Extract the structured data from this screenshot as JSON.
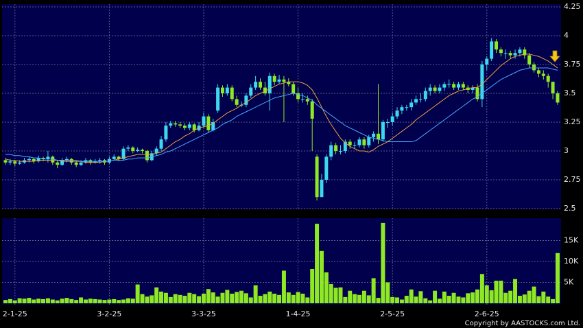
{
  "chart_data": {
    "type": "candlestick",
    "categories": [
      null,
      null,
      "2-1-25",
      null,
      null,
      null,
      null,
      null,
      null,
      null,
      null,
      null,
      null,
      null,
      null,
      null,
      null,
      null,
      null,
      null,
      null,
      null,
      "3-2-25",
      null,
      null,
      null,
      null,
      null,
      null,
      null,
      null,
      null,
      null,
      null,
      null,
      null,
      null,
      null,
      null,
      null,
      null,
      null,
      "3-3-25",
      null,
      null,
      null,
      null,
      null,
      null,
      null,
      null,
      null,
      null,
      null,
      null,
      null,
      null,
      null,
      null,
      null,
      null,
      null,
      "1-4-25",
      null,
      null,
      null,
      null,
      null,
      null,
      null,
      null,
      null,
      null,
      null,
      null,
      null,
      null,
      null,
      null,
      null,
      null,
      null,
      "2-5-25",
      null,
      null,
      null,
      null,
      null,
      null,
      null,
      null,
      null,
      null,
      null,
      null,
      null,
      null,
      null,
      null,
      null,
      null,
      null,
      "2-6-25",
      null,
      null,
      null,
      null,
      null,
      null,
      null,
      null,
      null,
      null,
      null,
      null,
      null,
      null,
      null
    ],
    "open": [
      2.92,
      2.9,
      2.91,
      2.89,
      2.9,
      2.92,
      2.93,
      2.91,
      2.94,
      2.93,
      2.95,
      2.9,
      2.88,
      2.92,
      2.93,
      2.9,
      2.88,
      2.9,
      2.92,
      2.9,
      2.91,
      2.92,
      2.9,
      2.93,
      2.95,
      2.93,
      3.02,
      3.03,
      3.0,
      3.01,
      3.0,
      2.92,
      2.98,
      3.02,
      3.1,
      3.22,
      3.24,
      3.23,
      3.22,
      3.2,
      3.23,
      3.18,
      3.22,
      3.3,
      3.18,
      3.35,
      3.55,
      3.5,
      3.55,
      3.45,
      3.4,
      3.4,
      3.48,
      3.55,
      3.6,
      3.55,
      3.5,
      3.65,
      3.6,
      3.62,
      3.6,
      3.58,
      3.5,
      3.45,
      3.45,
      3.43,
      2.95,
      2.6,
      2.75,
      2.95,
      3.05,
      3.0,
      3.0,
      3.08,
      3.05,
      3.05,
      3.1,
      3.05,
      3.12,
      3.15,
      3.1,
      3.25,
      3.25,
      3.3,
      3.35,
      3.38,
      3.38,
      3.42,
      3.45,
      3.45,
      3.52,
      3.55,
      3.52,
      3.55,
      3.58,
      3.58,
      3.55,
      3.58,
      3.55,
      3.53,
      3.55,
      3.45,
      3.75,
      3.8,
      3.95,
      3.88,
      3.85,
      3.85,
      3.83,
      3.85,
      3.88,
      3.83,
      3.75,
      3.7,
      3.67,
      3.65,
      3.6,
      3.5
    ],
    "high": [
      2.94,
      2.93,
      2.92,
      2.92,
      2.94,
      2.95,
      2.94,
      2.96,
      2.95,
      3.0,
      2.96,
      2.92,
      2.94,
      2.95,
      2.94,
      2.91,
      2.92,
      2.94,
      2.93,
      2.93,
      2.94,
      2.93,
      2.95,
      2.97,
      2.96,
      3.04,
      3.05,
      3.04,
      3.03,
      3.02,
      3.01,
      3.0,
      3.04,
      3.13,
      3.25,
      3.26,
      3.26,
      3.25,
      3.24,
      3.25,
      3.24,
      3.25,
      3.33,
      3.32,
      3.28,
      3.58,
      3.57,
      3.58,
      3.57,
      3.48,
      3.43,
      3.5,
      3.58,
      3.65,
      3.63,
      3.6,
      3.68,
      3.67,
      3.66,
      3.65,
      3.63,
      3.6,
      3.55,
      3.5,
      3.48,
      3.45,
      2.97,
      2.8,
      2.97,
      3.08,
      3.07,
      3.05,
      3.1,
      3.1,
      3.08,
      3.12,
      3.12,
      3.14,
      3.17,
      3.58,
      3.27,
      3.28,
      3.33,
      3.38,
      3.4,
      3.4,
      3.45,
      3.48,
      3.5,
      3.55,
      3.58,
      3.57,
      3.58,
      3.6,
      3.62,
      3.6,
      3.6,
      3.6,
      3.57,
      3.57,
      3.58,
      3.78,
      3.82,
      3.98,
      3.97,
      3.9,
      3.88,
      3.87,
      3.88,
      3.9,
      3.9,
      3.85,
      3.77,
      3.72,
      3.7,
      3.67,
      3.6,
      3.52
    ],
    "low": [
      2.88,
      2.88,
      2.87,
      2.88,
      2.89,
      2.9,
      2.89,
      2.9,
      2.91,
      2.9,
      2.88,
      2.85,
      2.87,
      2.9,
      2.88,
      2.86,
      2.87,
      2.89,
      2.88,
      2.89,
      2.89,
      2.88,
      2.89,
      2.92,
      2.91,
      2.92,
      3.0,
      2.98,
      2.99,
      2.98,
      2.9,
      2.91,
      2.96,
      3.0,
      3.08,
      3.2,
      3.21,
      3.2,
      3.18,
      3.18,
      3.16,
      3.17,
      3.2,
      3.16,
      3.17,
      3.33,
      3.47,
      3.48,
      3.43,
      3.38,
      3.38,
      3.38,
      3.46,
      3.53,
      3.53,
      3.48,
      3.35,
      3.57,
      3.58,
      3.25,
      3.56,
      3.48,
      3.42,
      3.42,
      3.4,
      3.0,
      2.57,
      2.6,
      2.72,
      2.92,
      2.97,
      2.97,
      2.98,
      3.02,
      3.02,
      3.03,
      3.02,
      3.03,
      3.08,
      3.06,
      3.08,
      3.2,
      3.22,
      3.28,
      3.32,
      3.35,
      3.35,
      3.4,
      3.42,
      3.43,
      3.48,
      3.5,
      3.5,
      3.52,
      3.55,
      3.53,
      3.53,
      3.53,
      3.5,
      3.5,
      3.43,
      3.38,
      3.7,
      3.78,
      3.85,
      3.82,
      3.8,
      3.8,
      3.8,
      3.82,
      3.8,
      3.72,
      3.68,
      3.64,
      3.62,
      3.55,
      3.45,
      3.4
    ],
    "close": [
      2.9,
      2.91,
      2.89,
      2.9,
      2.92,
      2.93,
      2.91,
      2.94,
      2.93,
      2.95,
      2.9,
      2.88,
      2.92,
      2.93,
      2.9,
      2.88,
      2.9,
      2.92,
      2.9,
      2.91,
      2.92,
      2.9,
      2.93,
      2.95,
      2.93,
      3.02,
      3.03,
      3.0,
      3.01,
      3.0,
      2.92,
      2.98,
      3.02,
      3.1,
      3.22,
      3.24,
      3.23,
      3.22,
      3.2,
      3.23,
      3.18,
      3.22,
      3.3,
      3.18,
      3.25,
      3.55,
      3.5,
      3.55,
      3.45,
      3.4,
      3.4,
      3.48,
      3.55,
      3.6,
      3.55,
      3.5,
      3.65,
      3.6,
      3.62,
      3.6,
      3.58,
      3.5,
      3.45,
      3.45,
      3.43,
      3.28,
      2.6,
      2.75,
      2.95,
      3.05,
      3.0,
      3.0,
      3.08,
      3.05,
      3.05,
      3.1,
      3.05,
      3.12,
      3.15,
      3.1,
      3.25,
      3.25,
      3.3,
      3.35,
      3.38,
      3.38,
      3.42,
      3.45,
      3.45,
      3.52,
      3.55,
      3.52,
      3.55,
      3.58,
      3.58,
      3.55,
      3.58,
      3.55,
      3.53,
      3.55,
      3.45,
      3.75,
      3.8,
      3.95,
      3.88,
      3.85,
      3.85,
      3.83,
      3.85,
      3.88,
      3.83,
      3.75,
      3.7,
      3.67,
      3.65,
      3.6,
      3.5,
      3.42
    ],
    "up_color": "#3dd8ee",
    "down_color": "#8ee824",
    "series": [
      {
        "color": "#f0a040",
        "values": [
          2.93,
          2.92,
          2.92,
          2.91,
          2.91,
          2.91,
          2.91,
          2.92,
          2.92,
          2.92,
          2.92,
          2.92,
          2.91,
          2.91,
          2.91,
          2.91,
          2.91,
          2.9,
          2.9,
          2.9,
          2.9,
          2.91,
          2.91,
          2.92,
          2.93,
          2.94,
          2.95,
          2.96,
          2.97,
          2.97,
          2.97,
          2.97,
          2.98,
          2.99,
          3.02,
          3.05,
          3.08,
          3.1,
          3.13,
          3.15,
          3.18,
          3.2,
          3.21,
          3.22,
          3.24,
          3.27,
          3.3,
          3.33,
          3.35,
          3.37,
          3.4,
          3.42,
          3.45,
          3.48,
          3.5,
          3.52,
          3.54,
          3.56,
          3.58,
          3.59,
          3.6,
          3.6,
          3.6,
          3.59,
          3.57,
          3.53,
          3.46,
          3.38,
          3.3,
          3.23,
          3.17,
          3.11,
          3.07,
          3.04,
          3.02,
          3.0,
          3.0,
          2.99,
          3.01,
          3.04,
          3.06,
          3.08,
          3.11,
          3.14,
          3.17,
          3.2,
          3.23,
          3.27,
          3.3,
          3.33,
          3.36,
          3.39,
          3.42,
          3.45,
          3.48,
          3.5,
          3.52,
          3.53,
          3.54,
          3.55,
          3.55,
          3.58,
          3.62,
          3.66,
          3.7,
          3.74,
          3.77,
          3.8,
          3.82,
          3.83,
          3.84,
          3.84,
          3.83,
          3.82,
          3.8,
          3.78,
          3.75,
          3.72
        ]
      },
      {
        "color": "#4aa8ff",
        "values": [
          2.97,
          2.97,
          2.96,
          2.96,
          2.95,
          2.95,
          2.94,
          2.94,
          2.93,
          2.93,
          2.93,
          2.92,
          2.92,
          2.92,
          2.92,
          2.92,
          2.91,
          2.91,
          2.91,
          2.91,
          2.91,
          2.91,
          2.91,
          2.92,
          2.92,
          2.92,
          2.93,
          2.93,
          2.94,
          2.94,
          2.94,
          2.95,
          2.96,
          2.97,
          2.99,
          3.0,
          3.02,
          3.04,
          3.06,
          3.08,
          3.1,
          3.12,
          3.14,
          3.16,
          3.18,
          3.2,
          3.23,
          3.25,
          3.27,
          3.3,
          3.32,
          3.34,
          3.36,
          3.38,
          3.4,
          3.42,
          3.44,
          3.46,
          3.47,
          3.48,
          3.49,
          3.5,
          3.49,
          3.48,
          3.46,
          3.44,
          3.4,
          3.37,
          3.34,
          3.31,
          3.28,
          3.25,
          3.22,
          3.2,
          3.18,
          3.16,
          3.14,
          3.12,
          3.11,
          3.1,
          3.09,
          3.08,
          3.08,
          3.08,
          3.08,
          3.08,
          3.08,
          3.09,
          3.12,
          3.15,
          3.18,
          3.21,
          3.24,
          3.27,
          3.3,
          3.33,
          3.36,
          3.39,
          3.42,
          3.45,
          3.47,
          3.5,
          3.53,
          3.56,
          3.59,
          3.62,
          3.64,
          3.66,
          3.68,
          3.7,
          3.71,
          3.72,
          3.72,
          3.72,
          3.72,
          3.72,
          3.71,
          3.7
        ]
      }
    ],
    "ylim": [
      2.5,
      4.25
    ],
    "yticks": [
      2.5,
      2.75,
      3,
      3.25,
      3.5,
      3.75,
      4,
      4.25
    ],
    "grid": true,
    "volume": {
      "color": "#8ee824",
      "values": [
        800,
        1000,
        700,
        1200,
        1100,
        1300,
        900,
        1100,
        1000,
        1200,
        900,
        700,
        1100,
        1300,
        1000,
        800,
        1400,
        900,
        1100,
        1000,
        900,
        800,
        900,
        1000,
        800,
        900,
        1200,
        1100,
        4500,
        2200,
        1600,
        1900,
        3800,
        2800,
        2500,
        1500,
        2200,
        2000,
        1800,
        2500,
        2200,
        1700,
        2300,
        3400,
        2600,
        1600,
        2500,
        3200,
        2300,
        2700,
        3000,
        2400,
        1400,
        4300,
        1800,
        2200,
        2800,
        2300,
        2000,
        7800,
        2600,
        2000,
        2700,
        2300,
        1400,
        8200,
        19000,
        12500,
        7400,
        4600,
        3700,
        3800,
        1500,
        3000,
        2200,
        2000,
        3000,
        1900,
        6000,
        1300,
        19200,
        5000,
        1500,
        1400,
        900,
        1800,
        3300,
        1600,
        2900,
        1200,
        700,
        3000,
        1100,
        2800,
        1800,
        2500,
        1600,
        1400,
        2400,
        2600,
        3300,
        7000,
        4300,
        3100,
        5400,
        5400,
        2500,
        3000,
        5800,
        1800,
        2100,
        3000,
        4000,
        1700,
        2800,
        1600,
        1000,
        12000
      ],
      "ylim": [
        0,
        20000
      ],
      "yticks": [
        {
          "value": 5000,
          "label": "5K"
        },
        {
          "value": 10000,
          "label": "10K"
        },
        {
          "value": 15000,
          "label": "15K"
        }
      ]
    },
    "footer": "Copyright by AASTOCKS.com Ltd."
  }
}
